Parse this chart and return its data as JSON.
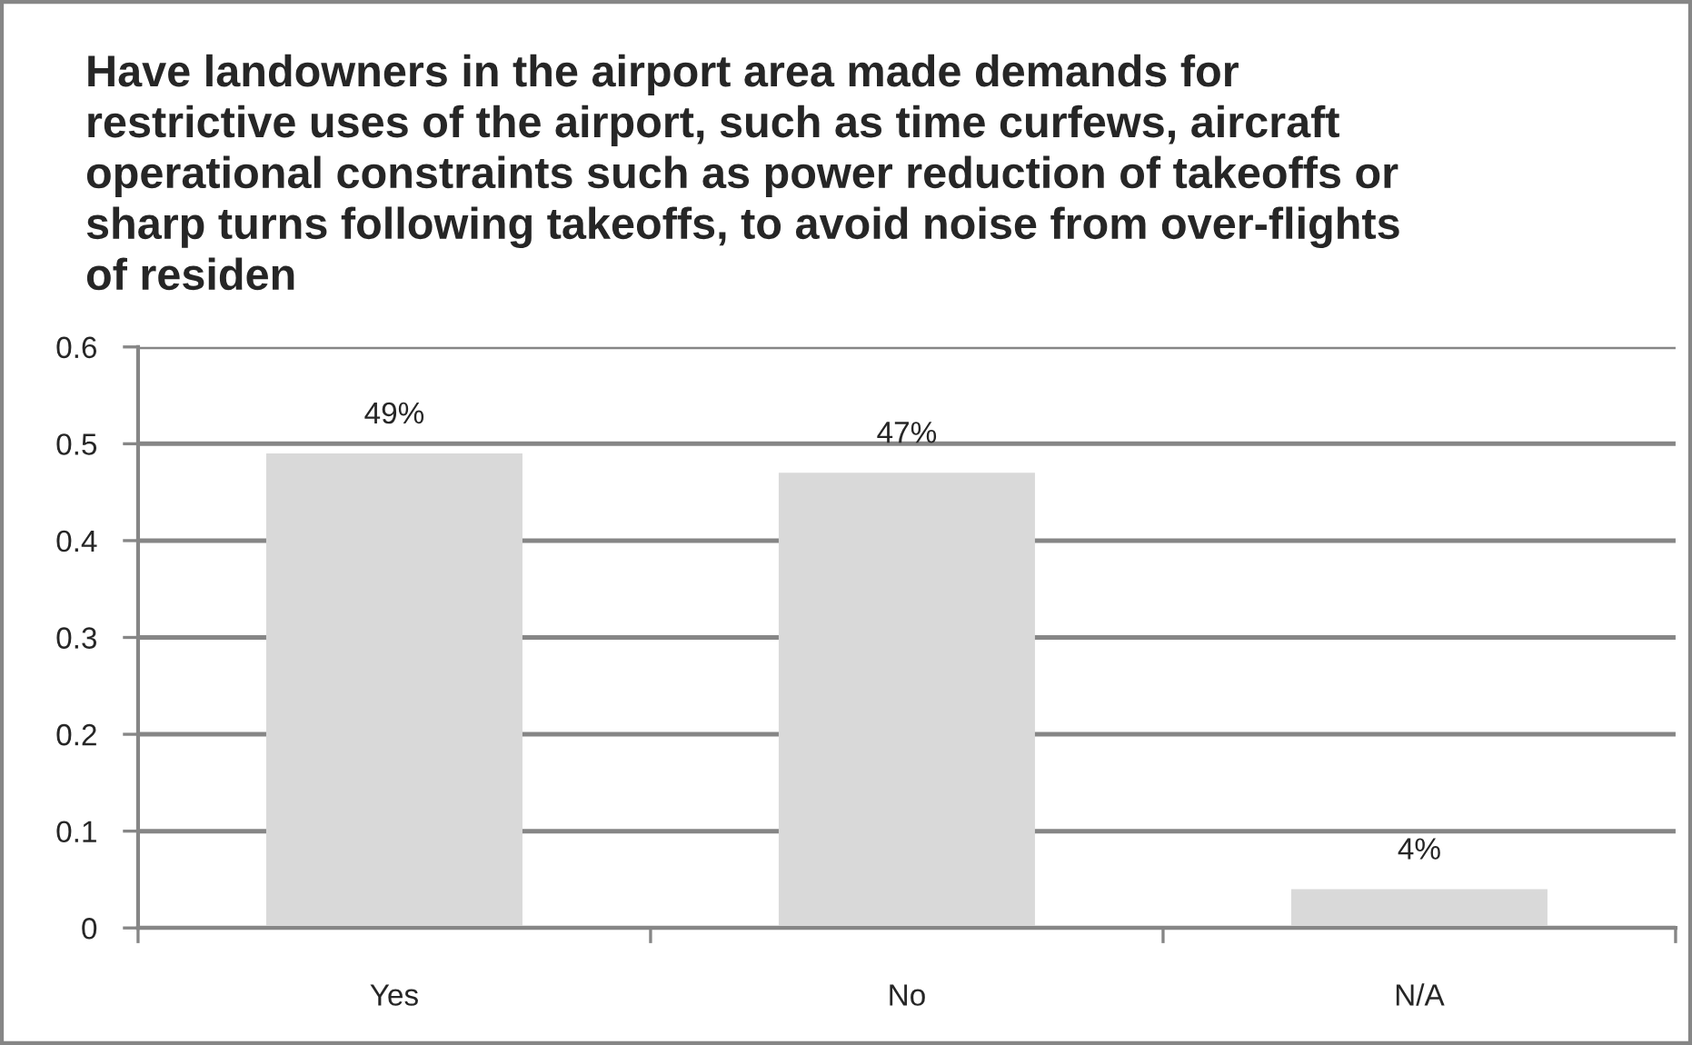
{
  "chart_data": {
    "type": "bar",
    "title": "Have landowners in the airport area made demands for\nrestrictive uses of the airport, such as time curfews, aircraft\noperational constraints such as power reduction of takeoffs or\nsharp turns following takeoffs, to avoid noise from over-flights\nof residen",
    "categories": [
      "Yes",
      "No",
      "N/A"
    ],
    "values": [
      0.49,
      0.47,
      0.04
    ],
    "value_labels": [
      "49%",
      "47%",
      "4%"
    ],
    "color": "#d9d9d9",
    "ylim": [
      0,
      0.6
    ],
    "yticks": [
      0,
      0.1,
      0.2,
      0.3,
      0.4,
      0.5,
      0.6
    ],
    "grid": "y"
  }
}
